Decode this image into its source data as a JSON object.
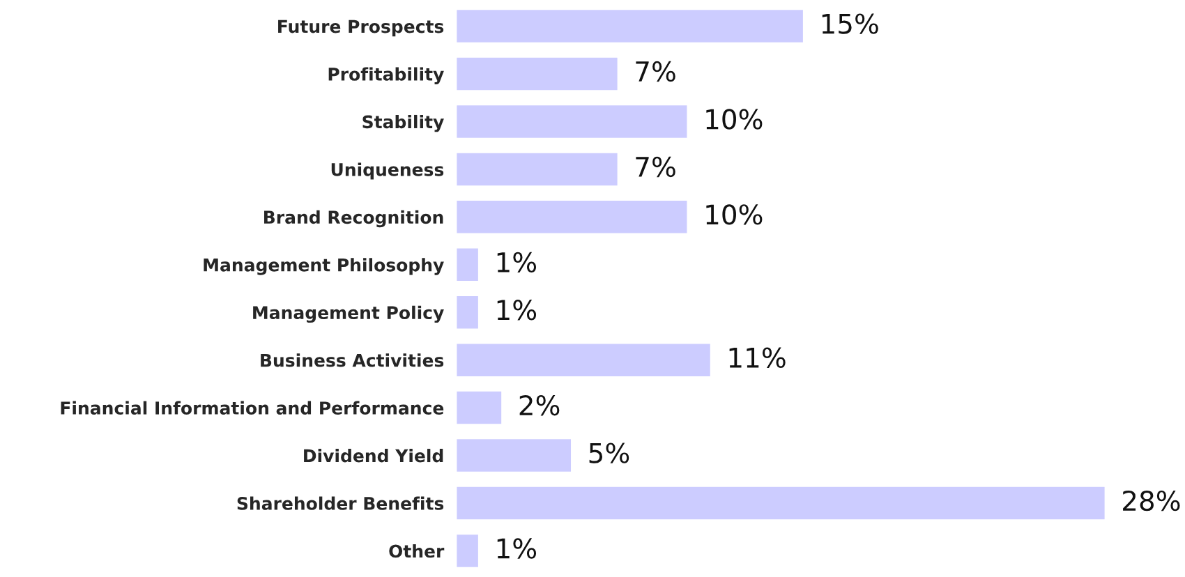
{
  "chart_data": {
    "type": "bar",
    "orientation": "horizontal",
    "categories": [
      "Future Prospects",
      "Profitability",
      "Stability",
      "Uniqueness",
      "Brand Recognition",
      "Management Philosophy",
      "Management Policy",
      "Business Activities",
      "Financial Information and Performance",
      "Dividend Yield",
      "Shareholder Benefits",
      "Other"
    ],
    "values": [
      15,
      7,
      10,
      7,
      10,
      1,
      1,
      11,
      2,
      5,
      28,
      1
    ],
    "value_labels": [
      "15%",
      "7%",
      "10%",
      "7%",
      "10%",
      "1%",
      "1%",
      "11%",
      "2%",
      "5%",
      "28%",
      "1%"
    ],
    "color": "#ccccff",
    "grid": false,
    "legend": false,
    "tick_labels": "y"
  }
}
